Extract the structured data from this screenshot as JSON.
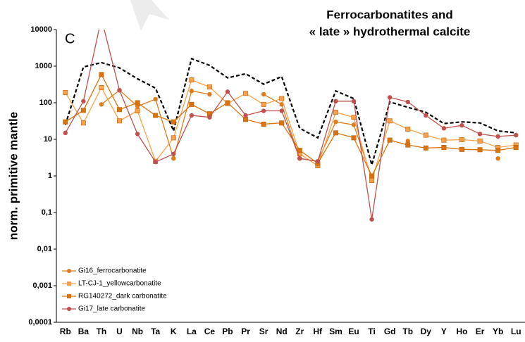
{
  "chart_data": {
    "type": "line",
    "title": [
      "Ferrocarbonatites and",
      "« late » hydrothermal calcite"
    ],
    "annotation": "C",
    "y_label": "norm. primitive mantle",
    "log_y": true,
    "ylim": [
      0.0001,
      10000
    ],
    "yticks": [
      {
        "value": 0.0001,
        "label": "0,0001"
      },
      {
        "value": 0.001,
        "label": "0,001"
      },
      {
        "value": 0.01,
        "label": "0,01"
      },
      {
        "value": 0.1,
        "label": "0,1"
      },
      1,
      10,
      100,
      1000,
      10000
    ],
    "categories": [
      "Rb",
      "Ba",
      "Th",
      "U",
      "Nb",
      "Ta",
      "K",
      "La",
      "Ce",
      "Pb",
      "Pr",
      "Sr",
      "Nd",
      "Zr",
      "Hf",
      "Sm",
      "Eu",
      "Ti",
      "Gd",
      "Tb",
      "Dy",
      "Y",
      "Ho",
      "Er",
      "Yb",
      "Lu"
    ],
    "legend_position": "lower left",
    "series": [
      {
        "color": "#000000",
        "dashed": true,
        "marker": "none",
        "values": [
          25,
          950,
          1250,
          900,
          450,
          250,
          17,
          1600,
          1050,
          480,
          620,
          320,
          520,
          20,
          11,
          210,
          130,
          2,
          105,
          75,
          55,
          27,
          30,
          28,
          17,
          15
        ]
      },
      {
        "name": "Gi16_ferrocarbonatite",
        "color": "#e07b1a",
        "marker": "circle",
        "values": [
          null,
          null,
          90,
          220,
          80,
          125,
          3,
          210,
          170,
          null,
          null,
          170,
          90,
          3,
          2.5,
          30,
          25,
          0.9,
          null,
          9,
          null,
          null,
          null,
          null,
          3,
          null
        ]
      },
      {
        "name": "LT-CJ-1_yellowcarbonatite",
        "color": "#f7a24a",
        "marker": "square",
        "values": [
          190,
          28,
          260,
          32,
          60,
          2.5,
          11,
          420,
          270,
          95,
          180,
          90,
          130,
          4,
          1.9,
          55,
          40,
          0.75,
          32,
          19,
          13,
          9.5,
          9.8,
          9,
          6,
          7
        ]
      },
      {
        "name": "RG140272_dark carbonatite",
        "color": "#d9730d",
        "marker": "square",
        "values": [
          30,
          62,
          590,
          65,
          100,
          45,
          30,
          90,
          50,
          100,
          35,
          26,
          28,
          5,
          2.2,
          15,
          11,
          1,
          9.5,
          7,
          5.8,
          6,
          5.3,
          5.2,
          5,
          6
        ]
      },
      {
        "name": "Gi17_late carbonatite",
        "color": "#c0504d",
        "marker": "circle",
        "values": [
          15,
          110,
          20000,
          220,
          14,
          2.4,
          4,
          45,
          40,
          200,
          45,
          60,
          60,
          3,
          2.5,
          110,
          110,
          0.065,
          140,
          105,
          45,
          20,
          24,
          14,
          12,
          13
        ]
      }
    ]
  }
}
